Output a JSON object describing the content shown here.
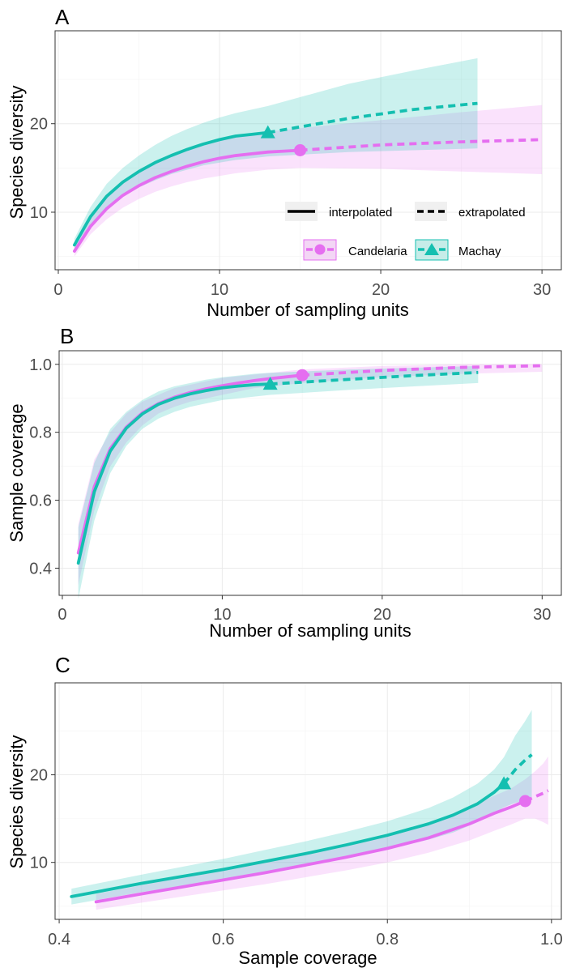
{
  "colors": {
    "Candelaria": "#e56ef0",
    "Machay": "#14bfb0",
    "legend_key_bg": "#f0f0f0"
  },
  "legend": {
    "line_types": [
      "interpolated",
      "extrapolated"
    ],
    "assemblages": [
      "Candelaria",
      "Machay"
    ]
  },
  "chart_data": [
    {
      "panel": "A",
      "type": "line",
      "xlabel": "Number of sampling units",
      "ylabel": "Species diversity",
      "xlim": [
        -0.2,
        31.2
      ],
      "ylim": [
        3.5,
        30.5
      ],
      "xticks": [
        0,
        10,
        20,
        30
      ],
      "yticks": [
        10,
        20
      ],
      "xminor": [
        5,
        15,
        25
      ],
      "yminor": [
        5,
        15,
        25
      ],
      "grid": true,
      "legend_position": "bottom-right inside",
      "series": [
        {
          "name": "Candelaria",
          "marker": "circle",
          "reference": [
            15,
            17.0
          ],
          "x": [
            1,
            2,
            3,
            4,
            5,
            6,
            7,
            8,
            9,
            10,
            11,
            12,
            13,
            14,
            15,
            20,
            25,
            30
          ],
          "y": [
            5.6,
            8.4,
            10.4,
            11.9,
            13.0,
            13.9,
            14.6,
            15.2,
            15.7,
            16.1,
            16.4,
            16.6,
            16.8,
            16.9,
            17.0,
            17.6,
            17.95,
            18.2
          ],
          "lower": [
            5.0,
            7.5,
            9.2,
            10.5,
            11.5,
            12.3,
            12.9,
            13.4,
            13.8,
            14.1,
            14.4,
            14.6,
            14.8,
            14.9,
            15.0,
            14.9,
            14.6,
            14.3
          ],
          "upper": [
            6.2,
            9.3,
            11.6,
            13.3,
            14.5,
            15.5,
            16.3,
            17.0,
            17.6,
            18.1,
            18.5,
            18.8,
            19.1,
            19.3,
            19.5,
            20.4,
            21.3,
            22.1
          ]
        },
        {
          "name": "Machay",
          "marker": "triangle",
          "reference": [
            13,
            19.0
          ],
          "x": [
            1,
            2,
            3,
            4,
            5,
            6,
            7,
            8,
            9,
            10,
            11,
            12,
            13,
            18,
            22,
            26
          ],
          "y": [
            6.3,
            9.5,
            11.8,
            13.4,
            14.6,
            15.6,
            16.4,
            17.1,
            17.7,
            18.2,
            18.6,
            18.8,
            19.0,
            20.6,
            21.6,
            22.3
          ],
          "lower": [
            5.6,
            8.4,
            10.4,
            11.8,
            12.8,
            13.6,
            14.3,
            14.8,
            15.3,
            15.6,
            15.9,
            16.1,
            16.3,
            16.8,
            17.0,
            17.2
          ],
          "upper": [
            7.0,
            10.6,
            13.2,
            15.0,
            16.4,
            17.6,
            18.6,
            19.4,
            20.1,
            20.7,
            21.2,
            21.6,
            22.0,
            24.5,
            26.0,
            27.4
          ]
        }
      ]
    },
    {
      "panel": "B",
      "type": "line",
      "xlabel": "Number of sampling units",
      "ylabel": "Sample coverage",
      "xlim": [
        -0.2,
        31.2
      ],
      "ylim": [
        0.32,
        1.04
      ],
      "xticks": [
        0,
        10,
        20,
        30
      ],
      "yticks": [
        0.4,
        0.6,
        0.8,
        1.0
      ],
      "xminor": [
        5,
        15,
        25
      ],
      "yminor": [
        0.5,
        0.7,
        0.9
      ],
      "grid": true,
      "series": [
        {
          "name": "Candelaria",
          "marker": "circle",
          "reference": [
            15,
            0.968
          ],
          "x": [
            1,
            2,
            3,
            4,
            5,
            6,
            7,
            8,
            9,
            10,
            11,
            12,
            13,
            14,
            15,
            20,
            25,
            30
          ],
          "y": [
            0.445,
            0.64,
            0.752,
            0.815,
            0.857,
            0.884,
            0.903,
            0.917,
            0.928,
            0.937,
            0.945,
            0.952,
            0.958,
            0.963,
            0.968,
            0.982,
            0.991,
            0.996
          ],
          "lower": [
            0.35,
            0.57,
            0.7,
            0.77,
            0.82,
            0.855,
            0.875,
            0.89,
            0.9,
            0.91,
            0.92,
            0.93,
            0.935,
            0.94,
            0.945,
            0.962,
            0.972,
            0.978
          ],
          "upper": [
            0.53,
            0.72,
            0.8,
            0.855,
            0.89,
            0.91,
            0.93,
            0.94,
            0.95,
            0.96,
            0.965,
            0.97,
            0.975,
            0.98,
            0.985,
            0.995,
            1.0,
            1.0
          ]
        },
        {
          "name": "Machay",
          "marker": "triangle",
          "reference": [
            13,
            0.942
          ],
          "x": [
            1,
            2,
            3,
            4,
            5,
            6,
            7,
            8,
            9,
            10,
            11,
            12,
            13,
            18,
            22,
            26
          ],
          "y": [
            0.415,
            0.625,
            0.745,
            0.812,
            0.854,
            0.882,
            0.9,
            0.913,
            0.923,
            0.931,
            0.936,
            0.94,
            0.942,
            0.956,
            0.967,
            0.976
          ],
          "lower": [
            0.31,
            0.54,
            0.68,
            0.76,
            0.81,
            0.84,
            0.86,
            0.875,
            0.885,
            0.895,
            0.9,
            0.905,
            0.91,
            0.925,
            0.935,
            0.945
          ],
          "upper": [
            0.52,
            0.71,
            0.81,
            0.86,
            0.895,
            0.92,
            0.935,
            0.945,
            0.955,
            0.962,
            0.967,
            0.972,
            0.975,
            0.985,
            0.99,
            0.995
          ]
        }
      ]
    },
    {
      "panel": "C",
      "type": "line",
      "xlabel": "Sample coverage",
      "ylabel": "Species diversity",
      "xlim": [
        0.395,
        1.012
      ],
      "ylim": [
        3.5,
        30.5
      ],
      "xticks": [
        0.4,
        0.6,
        0.8,
        1.0
      ],
      "yticks": [
        10,
        20
      ],
      "xminor": [
        0.5,
        0.7,
        0.9
      ],
      "yminor": [
        5,
        15,
        25
      ],
      "grid": true,
      "series": [
        {
          "name": "Candelaria",
          "marker": "circle",
          "reference": [
            0.968,
            17.0
          ],
          "x": [
            0.445,
            0.5,
            0.55,
            0.6,
            0.65,
            0.7,
            0.75,
            0.8,
            0.85,
            0.9,
            0.93,
            0.95,
            0.968,
            0.98,
            0.99,
            0.996
          ],
          "y": [
            5.5,
            6.4,
            7.2,
            8.0,
            8.8,
            9.7,
            10.6,
            11.6,
            12.8,
            14.4,
            15.6,
            16.3,
            17.0,
            17.5,
            17.9,
            18.2
          ],
          "lower": [
            4.6,
            5.4,
            6.1,
            6.8,
            7.5,
            8.3,
            9.1,
            10.0,
            11.1,
            12.5,
            13.6,
            14.3,
            15.0,
            15.0,
            14.6,
            14.3
          ],
          "upper": [
            6.4,
            7.4,
            8.3,
            9.2,
            10.1,
            11.1,
            12.1,
            13.2,
            14.5,
            16.3,
            17.6,
            18.4,
            19.5,
            20.4,
            21.3,
            22.1
          ]
        },
        {
          "name": "Machay",
          "marker": "triangle",
          "reference": [
            0.942,
            19.0
          ],
          "x": [
            0.415,
            0.5,
            0.55,
            0.6,
            0.65,
            0.7,
            0.75,
            0.8,
            0.85,
            0.88,
            0.91,
            0.93,
            0.942,
            0.956,
            0.967,
            0.976
          ],
          "y": [
            6.1,
            7.6,
            8.4,
            9.2,
            10.1,
            11.0,
            12.0,
            13.1,
            14.4,
            15.4,
            16.7,
            18.0,
            19.0,
            20.6,
            21.6,
            22.3
          ],
          "lower": [
            5.2,
            6.6,
            7.3,
            8.0,
            8.8,
            9.6,
            10.5,
            11.5,
            12.6,
            13.4,
            14.6,
            15.6,
            16.3,
            16.8,
            17.0,
            17.2
          ],
          "upper": [
            7.0,
            8.6,
            9.5,
            10.4,
            11.4,
            12.4,
            13.5,
            14.7,
            16.2,
            17.4,
            19.0,
            20.6,
            22.0,
            24.5,
            26.0,
            27.4
          ]
        }
      ]
    }
  ]
}
